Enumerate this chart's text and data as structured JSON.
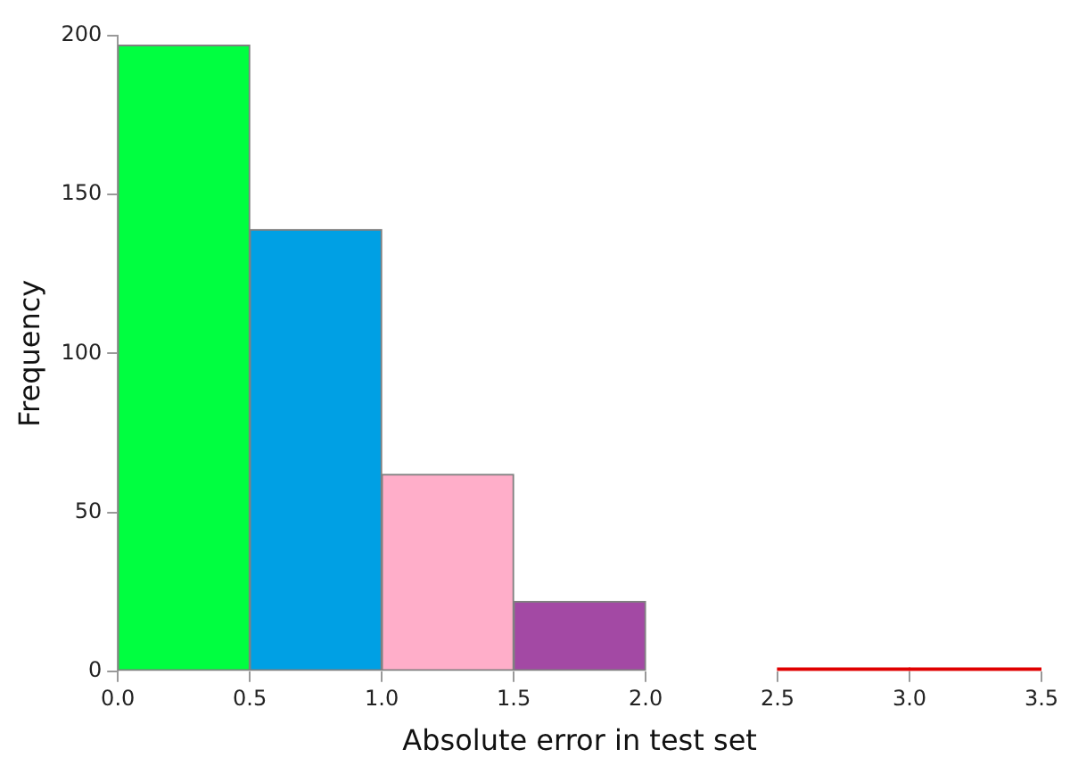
{
  "chart_data": {
    "type": "histogram",
    "xlabel": "Absolute error in test set",
    "ylabel": "Frequency",
    "bins": [
      0,
      0.5,
      1,
      1.5,
      2,
      2.5,
      3,
      3.5
    ],
    "values": [
      197,
      139,
      62,
      22,
      0,
      1,
      1
    ],
    "colors": [
      "#00ff40",
      "#00a0e4",
      "#ffaec9",
      "#a349a4",
      "#ffffff",
      "#e00000",
      "#e00000"
    ],
    "xlim": [
      0,
      3.5
    ],
    "xticks": [
      {
        "value": 0,
        "label": "0.0"
      },
      {
        "value": 0.5,
        "label": "0.5"
      },
      {
        "value": 1,
        "label": "1.0"
      },
      {
        "value": 1.5,
        "label": "1.5"
      },
      {
        "value": 2,
        "label": "2.0"
      },
      {
        "value": 2.5,
        "label": "2.5"
      },
      {
        "value": 3,
        "label": "3.0"
      },
      {
        "value": 3.5,
        "label": "3.5"
      }
    ],
    "ylim": [
      0,
      200
    ],
    "yticks": [
      0,
      50,
      100,
      150,
      200
    ],
    "grid": false,
    "legend": false
  }
}
